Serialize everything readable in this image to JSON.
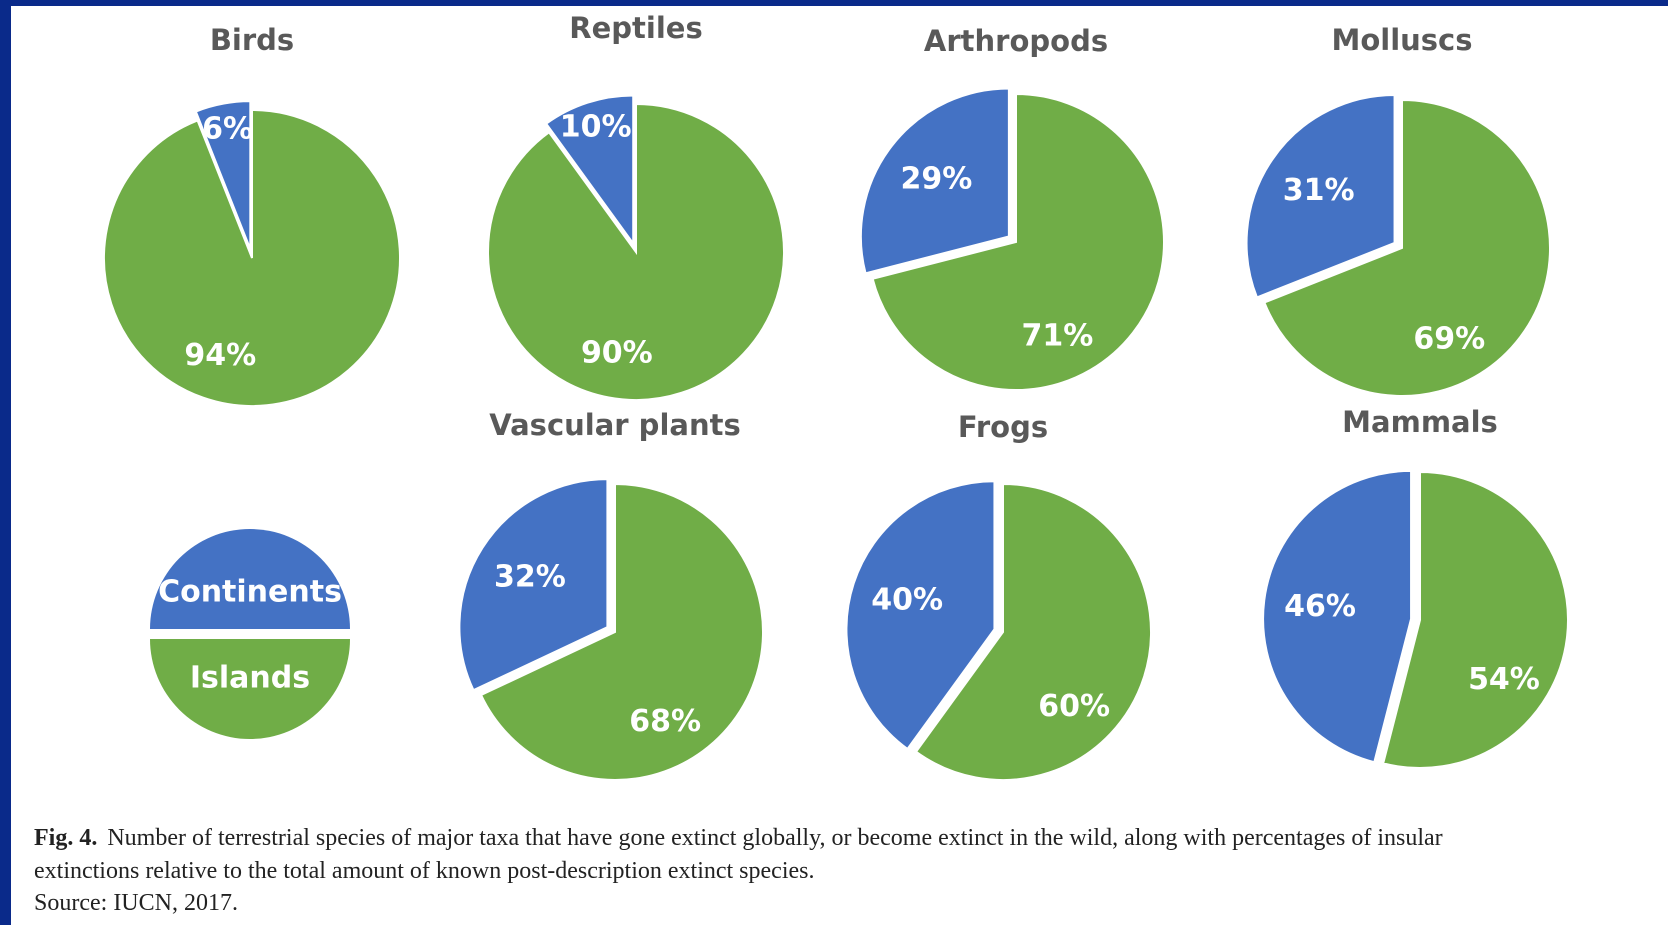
{
  "legend": {
    "categories": [
      "Continents",
      "Islands"
    ],
    "colors": [
      "#4472c4",
      "#70ad47"
    ]
  },
  "chart_data": [
    {
      "type": "pie",
      "title": "Birds",
      "values": [
        6,
        94
      ],
      "value_labels": [
        "6%",
        "94%"
      ]
    },
    {
      "type": "pie",
      "title": "Reptiles",
      "values": [
        10,
        90
      ],
      "value_labels": [
        "10%",
        "90%"
      ]
    },
    {
      "type": "pie",
      "title": "Arthropods",
      "values": [
        29,
        71
      ],
      "value_labels": [
        "29%",
        "71%"
      ]
    },
    {
      "type": "pie",
      "title": "Molluscs",
      "values": [
        31,
        69
      ],
      "value_labels": [
        "31%",
        "69%"
      ]
    },
    {
      "type": "pie",
      "title": "Vascular plants",
      "values": [
        32,
        68
      ],
      "value_labels": [
        "32%",
        "68%"
      ]
    },
    {
      "type": "pie",
      "title": "Frogs",
      "values": [
        40,
        60
      ],
      "value_labels": [
        "40%",
        "60%"
      ]
    },
    {
      "type": "pie",
      "title": "Mammals",
      "values": [
        46,
        54
      ],
      "value_labels": [
        "46%",
        "54%"
      ]
    }
  ],
  "caption": {
    "label": "Fig. 4.",
    "lines": [
      "Number of terrestrial species of major taxa that have gone extinct globally, or become extinct in the wild, along with percentages of insular",
      "extinctions relative to the total amount of known post-description extinct species."
    ],
    "source": "Source: IUCN, 2017."
  }
}
